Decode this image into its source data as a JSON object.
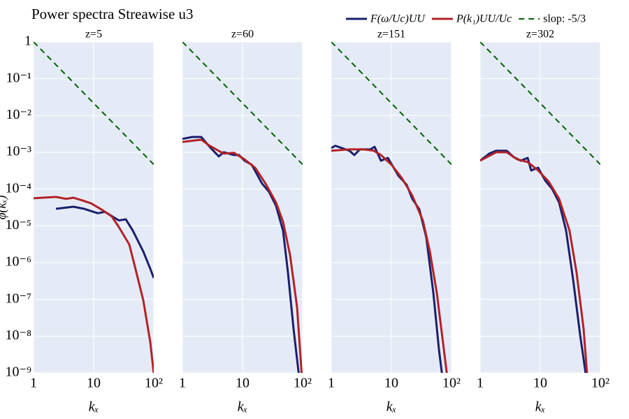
{
  "title": "Power spectra Streawise u3",
  "chart_data": [
    {
      "type": "line",
      "subtitle": "z=5",
      "xlabel": "kₓ",
      "ylabel": "φ(kₓ)",
      "xlog": true,
      "ylog": true,
      "grid": true,
      "xlim": [
        1,
        100
      ],
      "ylim": [
        1e-09,
        1
      ],
      "xticks": [
        1,
        10,
        {
          "value": 100,
          "label": "10²"
        }
      ],
      "yticks": [
        {
          "value": 1e-09,
          "label": "10⁻⁹"
        },
        {
          "value": 1e-08,
          "label": "10⁻⁸"
        },
        {
          "value": 1e-07,
          "label": "10⁻⁷"
        },
        {
          "value": 1e-06,
          "label": "10⁻⁶"
        },
        {
          "value": 1e-05,
          "label": "10⁻⁵"
        },
        {
          "value": 0.0001,
          "label": "10⁻⁴"
        },
        {
          "value": 0.001,
          "label": "10⁻³"
        },
        {
          "value": 0.01,
          "label": "10⁻²"
        },
        {
          "value": 0.1,
          "label": "10⁻¹"
        },
        1
      ],
      "series": [
        {
          "name": "F(ω/Uc)UU",
          "color": "#1a1f6e",
          "x": [
            2.36,
            4.6,
            6.9,
            11.7,
            15.4,
            26.2,
            34.3,
            44.8,
            67,
            87.5,
            100
          ],
          "values": [
            2.9e-05,
            3.3e-05,
            2.9e-05,
            2.2e-05,
            2.4e-05,
            1.4e-05,
            1.5e-05,
            7.4e-06,
            2e-06,
            6.8e-07,
            3.8e-07
          ]
        },
        {
          "name": "P(k₁)UU/Uc",
          "color": "#b22228",
          "x": [
            1,
            2.36,
            3.5,
            4.6,
            6.0,
            9.0,
            13.4,
            20,
            26.2,
            39.2,
            51.4,
            67,
            87.5,
            100
          ],
          "values": [
            5.6e-05,
            6.1e-05,
            5.4e-05,
            5.8e-05,
            5.1e-05,
            4.1e-05,
            2.8e-05,
            1.8e-05,
            9.3e-06,
            3.1e-06,
            5.4e-07,
            9.4e-08,
            6.9e-09,
            9.6e-10
          ]
        },
        {
          "name": "slop: -5/3",
          "color": "#006400",
          "dashed": true,
          "x": [
            1,
            100
          ],
          "values": [
            1,
            0.000464
          ]
        }
      ]
    },
    {
      "type": "line",
      "subtitle": "z=60",
      "xlabel": "kₓ",
      "xlog": true,
      "ylog": true,
      "grid": true,
      "xlim": [
        1,
        100
      ],
      "ylim": [
        1e-09,
        1
      ],
      "xticks": [
        1,
        10,
        {
          "value": 100,
          "label": "10²"
        }
      ],
      "yticks": [
        1e-09,
        1e-08,
        1e-07,
        1e-06,
        1e-05,
        0.0001,
        0.001,
        0.01,
        0.1,
        1
      ],
      "series": [
        {
          "color": "#1a1f6e",
          "x": [
            1,
            1.46,
            2.06,
            2.84,
            4.03,
            4.85,
            7.24,
            8.75,
            10.8,
            14.2,
            21.2,
            27.7,
            36.1,
            47.2,
            57.0,
            70.6,
            87.5
          ],
          "values": [
            0.0023,
            0.0026,
            0.0026,
            0.0014,
            0.00077,
            0.001,
            0.00084,
            0.00084,
            0.00059,
            0.00046,
            0.00014,
            8.3e-05,
            3.5e-05,
            7.4e-06,
            5.4e-07,
            1.6e-08,
            7.7e-10
          ]
        },
        {
          "color": "#b22228",
          "x": [
            1,
            2.06,
            2.84,
            4.85,
            7.24,
            10.8,
            16.2,
            24.2,
            36.1,
            47.2,
            61.8,
            80.9,
            97.3
          ],
          "values": [
            0.0019,
            0.0022,
            0.0015,
            0.00092,
            0.00096,
            0.00064,
            0.00038,
            0.00014,
            4.3e-05,
            1.3e-05,
            1.6e-06,
            6.1e-08,
            7.7e-10
          ]
        },
        {
          "color": "#006400",
          "dashed": true,
          "x": [
            1,
            100
          ],
          "values": [
            1,
            0.000464
          ]
        }
      ]
    },
    {
      "type": "line",
      "subtitle": "z=151",
      "xlabel": "kₓ",
      "xlog": true,
      "ylog": true,
      "grid": true,
      "xlim": [
        1,
        100
      ],
      "ylim": [
        1e-09,
        1
      ],
      "xticks": [
        1,
        10,
        {
          "value": 100,
          "label": "10²"
        }
      ],
      "yticks": [
        1e-09,
        1e-08,
        1e-07,
        1e-06,
        1e-05,
        0.0001,
        0.001,
        0.01,
        0.1,
        1
      ],
      "series": [
        {
          "color": "#1a1f6e",
          "x": [
            1,
            1.17,
            2.0,
            2.42,
            3.0,
            4.48,
            5.26,
            6.7,
            8.75,
            13.1,
            18.0,
            22.3,
            29.2,
            38.1,
            49.9,
            61.8,
            70.6
          ],
          "values": [
            0.0013,
            0.0015,
            0.0011,
            0.00084,
            0.0012,
            0.0012,
            0.0014,
            0.00059,
            0.0007,
            0.00023,
            0.00013,
            5.4e-05,
            2.8e-05,
            4.8e-06,
            1.5e-07,
            4.4e-09,
            7.7e-10
          ]
        },
        {
          "color": "#b22228",
          "x": [
            1,
            2.0,
            3.42,
            5.1,
            6.7,
            10,
            14.9,
            22.3,
            33.4,
            43.7,
            57.0,
            74.6,
            85.1
          ],
          "values": [
            0.0011,
            0.0012,
            0.0012,
            0.0011,
            0.00084,
            0.00046,
            0.0002,
            6.6e-05,
            1.4e-05,
            2e-06,
            1.5e-07,
            4.4e-09,
            7.7e-10
          ]
        },
        {
          "color": "#006400",
          "dashed": true,
          "x": [
            1,
            100
          ],
          "values": [
            1,
            0.000464
          ]
        }
      ]
    },
    {
      "type": "line",
      "subtitle": "z=302",
      "xlabel": "kₓ",
      "xlog": true,
      "ylog": true,
      "grid": true,
      "xlim": [
        1,
        100
      ],
      "ylim": [
        1e-09,
        1
      ],
      "xticks": [
        1,
        10,
        {
          "value": 100,
          "label": "10²"
        }
      ],
      "yticks": [
        1e-09,
        1e-08,
        1e-07,
        1e-06,
        1e-05,
        0.0001,
        0.001,
        0.01,
        0.1,
        1
      ],
      "series": [
        {
          "color": "#1a1f6e",
          "x": [
            1,
            1.42,
            1.85,
            2.77,
            3.61,
            4.72,
            6.18,
            7.06,
            9.23,
            12.1,
            15.8,
            20.6,
            26.9,
            35.2,
            46.0,
            57.0
          ],
          "values": [
            0.00059,
            0.00092,
            0.0011,
            0.0011,
            0.00074,
            0.00059,
            0.0007,
            0.00032,
            0.00038,
            0.00017,
            0.0001,
            4.3e-05,
            7.4e-06,
            3.5e-07,
            1.1e-08,
            9.6e-10
          ]
        },
        {
          "color": "#b22228",
          "x": [
            1,
            1.85,
            2.77,
            4.14,
            6.18,
            9.23,
            13.8,
            20.6,
            30.7,
            40.2,
            52.6,
            60.1
          ],
          "values": [
            0.00059,
            0.001,
            0.001,
            0.00064,
            0.00054,
            0.00032,
            0.00016,
            5.4e-05,
            7.4e-06,
            5.4e-07,
            1.6e-08,
            9.6e-10
          ]
        },
        {
          "color": "#006400",
          "dashed": true,
          "x": [
            1,
            100
          ],
          "values": [
            1,
            0.000464
          ]
        }
      ]
    }
  ]
}
